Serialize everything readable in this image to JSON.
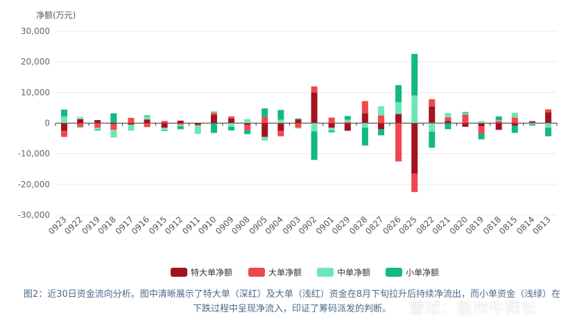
{
  "chart_data": {
    "type": "bar",
    "stacked": true,
    "ylabel": "净额(万元)",
    "ylim": [
      -30000,
      30000
    ],
    "yticks": [
      30000,
      20000,
      10000,
      0,
      -10000,
      -20000,
      -30000
    ],
    "ytick_labels": [
      "30,000",
      "20,000",
      "10,000",
      "0",
      "-10,000",
      "-20,000",
      "-30,000"
    ],
    "grid": true,
    "legend_position": "bottom-center",
    "categories": [
      "0923",
      "0922",
      "0919",
      "0918",
      "0917",
      "0916",
      "0915",
      "0912",
      "0911",
      "0910",
      "0909",
      "0908",
      "0905",
      "0904",
      "0903",
      "0902",
      "0901",
      "0829",
      "0828",
      "0827",
      "0826",
      "0825",
      "0822",
      "0821",
      "0820",
      "0819",
      "0818",
      "0815",
      "0814",
      "0813"
    ],
    "category_pairs": [
      [
        "0923",
        "0922"
      ],
      [
        "0919",
        "0918"
      ],
      [
        "0917",
        "0916"
      ],
      [
        "0915",
        "0912"
      ],
      [
        "0911",
        "0910"
      ],
      [
        "0909",
        "0908"
      ],
      [
        "0905",
        "0904"
      ],
      [
        "0903",
        "0902"
      ],
      [
        "0901",
        "0829"
      ],
      [
        "0828",
        "0827"
      ],
      [
        "0826",
        "0825"
      ],
      [
        "0822",
        "0821"
      ],
      [
        "0820",
        "0819"
      ],
      [
        "0818",
        "0815"
      ],
      [
        "0814",
        "0813"
      ]
    ],
    "series": [
      {
        "name": "特大单净额",
        "color": "#a3121f",
        "values": [
          [
            -2500,
            1300
          ],
          [
            1000,
            -400
          ],
          [
            -500,
            1200
          ],
          [
            -1500,
            800
          ],
          [
            -500,
            2700
          ],
          [
            1500,
            -600
          ],
          [
            -4500,
            -2500
          ],
          [
            1200,
            10000
          ],
          [
            -1500,
            -2500
          ],
          [
            3200,
            -2000
          ],
          [
            3000,
            -16500
          ],
          [
            5500,
            700
          ],
          [
            -1200,
            -1000
          ],
          [
            -2200,
            -800
          ],
          [
            500,
            3500
          ]
        ]
      },
      {
        "name": "大单净额",
        "color": "#f0474e",
        "values": [
          [
            -2000,
            -1200
          ],
          [
            -1500,
            -1800
          ],
          [
            1700,
            -1300
          ],
          [
            700,
            -500
          ],
          [
            -300,
            700
          ],
          [
            700,
            -1700
          ],
          [
            2000,
            -1800
          ],
          [
            -1500,
            2000
          ],
          [
            1800,
            300
          ],
          [
            4000,
            2500
          ],
          [
            -12500,
            -6000
          ],
          [
            2300,
            1200
          ],
          [
            2800,
            -2500
          ],
          [
            700,
            1800
          ],
          [
            200,
            1000
          ]
        ]
      },
      {
        "name": "中单净额",
        "color": "#6ee7b7",
        "values": [
          [
            2200,
            700
          ],
          [
            -600,
            -2500
          ],
          [
            -1600,
            1000
          ],
          [
            -900,
            -500
          ],
          [
            -2700,
            500
          ],
          [
            -1200,
            1300
          ],
          [
            -1200,
            1100
          ],
          [
            -300,
            -2700
          ],
          [
            -1000,
            800
          ],
          [
            -1500,
            3000
          ],
          [
            3800,
            9000
          ],
          [
            -2800,
            1400
          ],
          [
            500,
            700
          ],
          [
            300,
            1600
          ],
          [
            -400,
            -1500
          ]
        ]
      },
      {
        "name": "小单净额",
        "color": "#12b886",
        "values": [
          [
            2200,
            -200
          ],
          [
            -300,
            3200
          ],
          [
            -200,
            300
          ],
          [
            -200,
            -1000
          ],
          [
            0,
            -3200
          ],
          [
            -1200,
            -1300
          ],
          [
            2800,
            3200
          ],
          [
            300,
            -9300
          ],
          [
            -500,
            1200
          ],
          [
            -5800,
            -2000
          ],
          [
            5600,
            13600
          ],
          [
            -5200,
            -2000
          ],
          [
            300,
            -1800
          ],
          [
            1200,
            -2400
          ],
          [
            -400,
            -2800
          ]
        ]
      }
    ]
  },
  "caption": {
    "line1": "图2：近30日资金流向分析。图中清晰展示了特大单（深红）及大单（浅红）资金在8月下旬拉升后持续净流出，而小单资金（浅绿）在",
    "line2": "下跌过程中呈现净流入，印证了筹码派发的判断。"
  },
  "watermark": "雪球：股市牛探长"
}
